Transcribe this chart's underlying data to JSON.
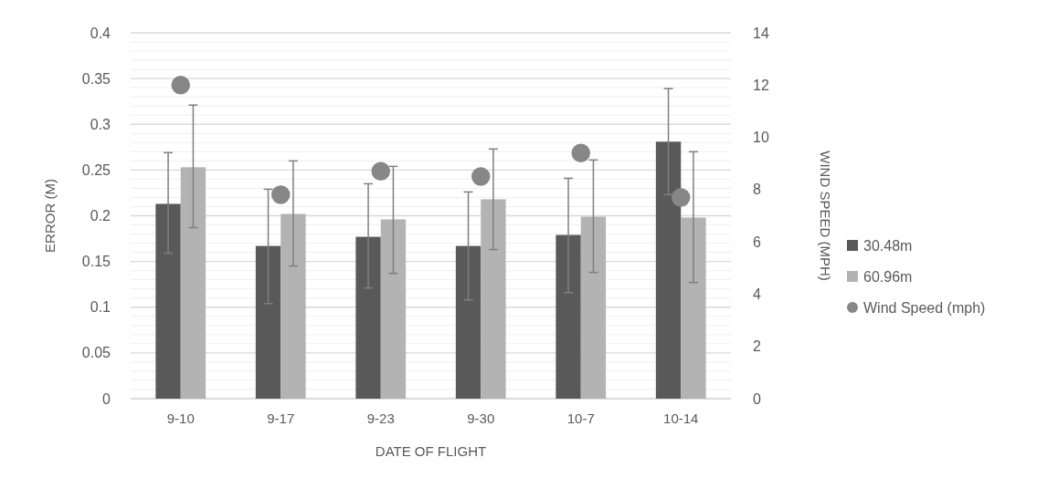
{
  "chart_data": {
    "type": "bar",
    "xlabel": "DATE OF FLIGHT",
    "ylabel": "ERROR (M)",
    "y2label": "WIND SPEED (MPH)",
    "categories": [
      "9-10",
      "9-17",
      "9-23",
      "9-30",
      "10-7",
      "10-14"
    ],
    "series": [
      {
        "name": "30.48m",
        "color": "#595959",
        "values": [
          0.213,
          0.167,
          0.177,
          0.167,
          0.179,
          0.281
        ],
        "errors": [
          [
            0.159,
            0.269
          ],
          [
            0.104,
            0.229
          ],
          [
            0.121,
            0.235
          ],
          [
            0.108,
            0.226
          ],
          [
            0.116,
            0.241
          ],
          [
            0.223,
            0.339
          ]
        ]
      },
      {
        "name": "60.96m",
        "color": "#b3b3b3",
        "values": [
          0.253,
          0.202,
          0.196,
          0.218,
          0.199,
          0.198
        ],
        "errors": [
          [
            0.187,
            0.321
          ],
          [
            0.145,
            0.26
          ],
          [
            0.137,
            0.254
          ],
          [
            0.163,
            0.273
          ],
          [
            0.138,
            0.261
          ],
          [
            0.127,
            0.27
          ]
        ]
      },
      {
        "name": "Wind Speed (mph)",
        "type": "scatter",
        "axis": "y2",
        "marker": "circle",
        "color": "#878787",
        "x": [
          "9-10",
          "9-17",
          "9-23",
          "9-30",
          "10-7",
          "10-14"
        ],
        "values": [
          12.0,
          7.8,
          8.7,
          8.5,
          9.4,
          7.7
        ]
      }
    ],
    "ylim": [
      0,
      0.4
    ],
    "yticks": [
      0,
      {
        "value": 0.01,
        "label": null
      },
      {
        "value": 0.02,
        "label": null
      },
      {
        "value": 0.03,
        "label": null
      },
      {
        "value": 0.04,
        "label": null
      },
      {
        "value": 0.05,
        "label": "0.05"
      },
      {
        "value": 0.06,
        "label": null
      },
      {
        "value": 0.07,
        "label": null
      },
      {
        "value": 0.08,
        "label": null
      },
      {
        "value": 0.09,
        "label": null
      },
      0.1,
      {
        "value": 0.11,
        "label": null
      },
      {
        "value": 0.12,
        "label": null
      },
      {
        "value": 0.13,
        "label": null
      },
      {
        "value": 0.14,
        "label": null
      },
      0.15,
      {
        "value": 0.16,
        "label": null
      },
      {
        "value": 0.17,
        "label": null
      },
      {
        "value": 0.18,
        "label": null
      },
      {
        "value": 0.19,
        "label": null
      },
      0.2,
      {
        "value": 0.21,
        "label": null
      },
      {
        "value": 0.22,
        "label": null
      },
      {
        "value": 0.23,
        "label": null
      },
      {
        "value": 0.24,
        "label": null
      },
      0.25,
      {
        "value": 0.26,
        "label": null
      },
      {
        "value": 0.27,
        "label": null
      },
      {
        "value": 0.28,
        "label": null
      },
      {
        "value": 0.29,
        "label": null
      },
      0.3,
      {
        "value": 0.31,
        "label": null
      },
      {
        "value": 0.32,
        "label": null
      },
      {
        "value": 0.33,
        "label": null
      },
      {
        "value": 0.34,
        "label": null
      },
      0.35,
      {
        "value": 0.36,
        "label": null
      },
      {
        "value": 0.37,
        "label": null
      },
      {
        "value": 0.38,
        "label": null
      },
      {
        "value": 0.39,
        "label": null
      },
      0.4
    ],
    "y2lim": [
      0,
      14
    ],
    "y2ticks": [
      0,
      2,
      4,
      6,
      8,
      10,
      12,
      14
    ],
    "grid": "y",
    "legend": "right"
  }
}
